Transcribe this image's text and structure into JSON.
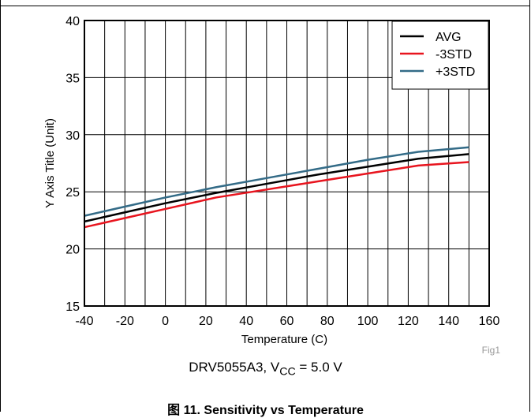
{
  "chart_data": {
    "type": "line",
    "xlabel": "Temperature (C)",
    "ylabel": "Y Axis Title (Unit)",
    "xlim": [
      -40,
      160
    ],
    "ylim": [
      15,
      40
    ],
    "xticks": [
      -40,
      -20,
      0,
      20,
      40,
      60,
      80,
      100,
      120,
      140,
      160
    ],
    "yticks": [
      15,
      20,
      25,
      30,
      35,
      40
    ],
    "grid": true,
    "legend_position": "top-right",
    "x": [
      -40,
      -20,
      0,
      25,
      50,
      75,
      100,
      125,
      150
    ],
    "series": [
      {
        "name": "AVG",
        "color": "#000000",
        "values": [
          22.4,
          23.2,
          24.0,
          24.9,
          25.7,
          26.5,
          27.2,
          27.9,
          28.3
        ]
      },
      {
        "name": "-3STD",
        "color": "#e8141e",
        "values": [
          21.9,
          22.7,
          23.5,
          24.5,
          25.2,
          25.9,
          26.6,
          27.3,
          27.6
        ]
      },
      {
        "name": "+3STD",
        "color": "#336b87",
        "values": [
          22.9,
          23.7,
          24.5,
          25.4,
          26.2,
          27.0,
          27.8,
          28.5,
          28.9
        ]
      }
    ]
  },
  "fig_tag": "Fig1",
  "condition": {
    "prefix": "DRV5055A3, V",
    "subscript": "CC",
    "suffix": " = 5.0 V"
  },
  "caption": "图 11. Sensitivity vs Temperature"
}
